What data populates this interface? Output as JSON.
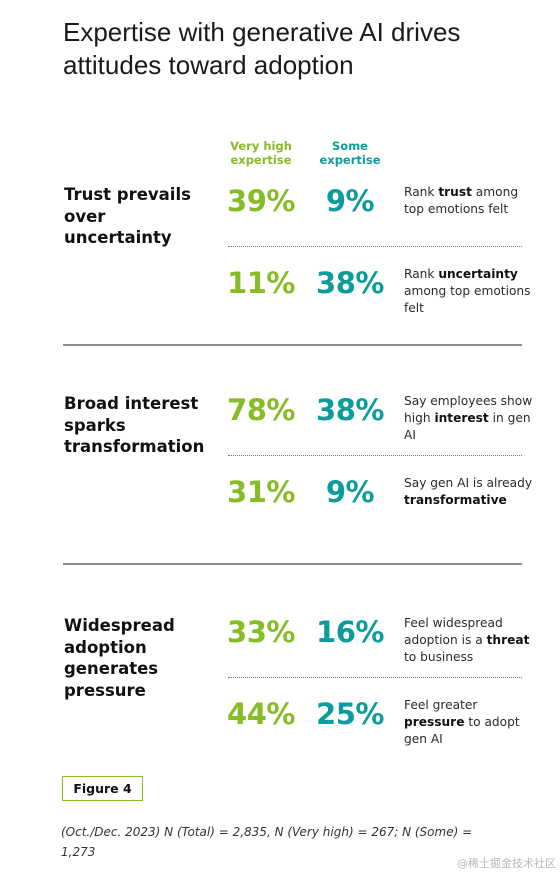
{
  "title": "Expertise with generative AI drives attitudes toward adoption",
  "columns": {
    "very_high": "Very high expertise",
    "some": "Some expertise"
  },
  "colors": {
    "very_high": "#86bc25",
    "some": "#0d9c9c"
  },
  "chart_data": {
    "type": "table",
    "title": "Expertise with generative AI drives attitudes toward adoption",
    "units": "%",
    "columns": [
      "Very high expertise",
      "Some expertise"
    ],
    "sections": [
      {
        "title": "Trust prevails over uncertainty",
        "rows": [
          {
            "very_high": 39,
            "some": 9,
            "desc": [
              [
                "Rank ",
                false
              ],
              [
                "trust",
                true
              ],
              [
                " among top emotions felt",
                false
              ]
            ]
          },
          {
            "very_high": 11,
            "some": 38,
            "desc": [
              [
                "Rank ",
                false
              ],
              [
                "uncertainty",
                true
              ],
              [
                " among top emotions felt",
                false
              ]
            ]
          }
        ]
      },
      {
        "title": "Broad interest sparks transformation",
        "rows": [
          {
            "very_high": 78,
            "some": 38,
            "desc": [
              [
                "Say employees show high ",
                false
              ],
              [
                "interest",
                true
              ],
              [
                " in gen AI",
                false
              ]
            ]
          },
          {
            "very_high": 31,
            "some": 9,
            "desc": [
              [
                "Say gen AI is already ",
                false
              ],
              [
                "transformative",
                true
              ]
            ]
          }
        ]
      },
      {
        "title": "Widespread adoption generates pressure",
        "rows": [
          {
            "very_high": 33,
            "some": 16,
            "desc": [
              [
                "Feel widespread adoption is a ",
                false
              ],
              [
                "threat",
                true
              ],
              [
                " to business",
                false
              ]
            ]
          },
          {
            "very_high": 44,
            "some": 25,
            "desc": [
              [
                "Feel greater ",
                false
              ],
              [
                "pressure",
                true
              ],
              [
                " to adopt gen AI",
                false
              ]
            ]
          }
        ]
      }
    ]
  },
  "figure_label": "Figure 4",
  "note": "(Oct./Dec. 2023) N (Total) = 2,835, N (Very high) = 267; N (Some) = 1,273",
  "watermark": "@稀土掘金技术社区"
}
